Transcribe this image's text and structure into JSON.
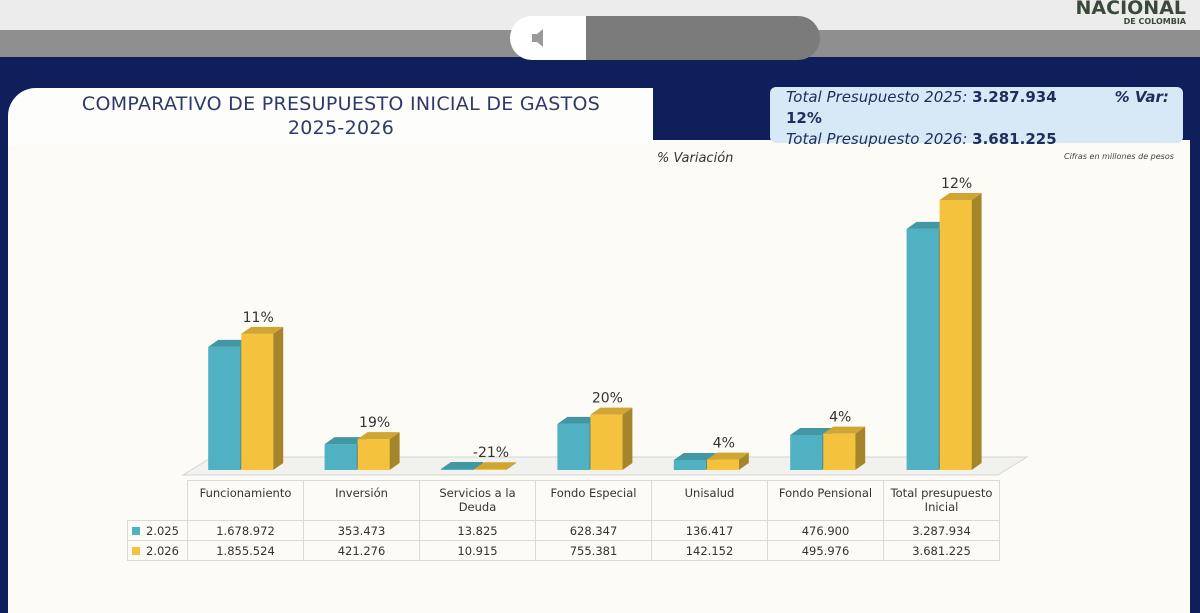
{
  "header": {
    "title": "COMPARATIVO DE PRESUPUESTO INICIAL DE GASTOS 2025-2026",
    "logo": [
      "NACIONAL",
      "DE COLOMBIA"
    ],
    "total_2025_label": "Total Presupuesto 2025:",
    "total_2025": "3.287.934",
    "var_label": "% Var:",
    "var": "12%",
    "total_2026_label": "Total Presupuesto 2026:",
    "total_2026": "3.681.225",
    "note": "Cifras en millones de pesos"
  },
  "chart_data": {
    "type": "bar3d",
    "subtitle": "% Variación",
    "categories": [
      "Funcionamiento",
      "Inversión",
      "Servicios a la Deuda",
      "Fondo Especial",
      "Unisalud",
      "Fondo Pensional",
      "Total presupuesto Inicial"
    ],
    "series": [
      {
        "name": "2.025",
        "color": "#4fb1c1",
        "values": [
          1678972,
          353473,
          13825,
          628347,
          136417,
          476900,
          3287934
        ],
        "value_labels": [
          "1.678.972",
          "353.473",
          "13.825",
          "628.347",
          "136.417",
          "476.900",
          "3.287.934"
        ]
      },
      {
        "name": "2.026",
        "color": "#f4c23d",
        "values": [
          1855524,
          421276,
          10915,
          755381,
          142152,
          495976,
          3681225
        ],
        "value_labels": [
          "1.855.524",
          "421.276",
          "10.915",
          "755.381",
          "142.152",
          "495.976",
          "3.681.225"
        ]
      }
    ],
    "variation": {
      "values": [
        11,
        19,
        -21,
        20,
        4,
        4,
        12
      ],
      "value_labels": [
        "11%",
        "19%",
        "-21%",
        "20%",
        "4%",
        "4%",
        "12%"
      ]
    }
  }
}
